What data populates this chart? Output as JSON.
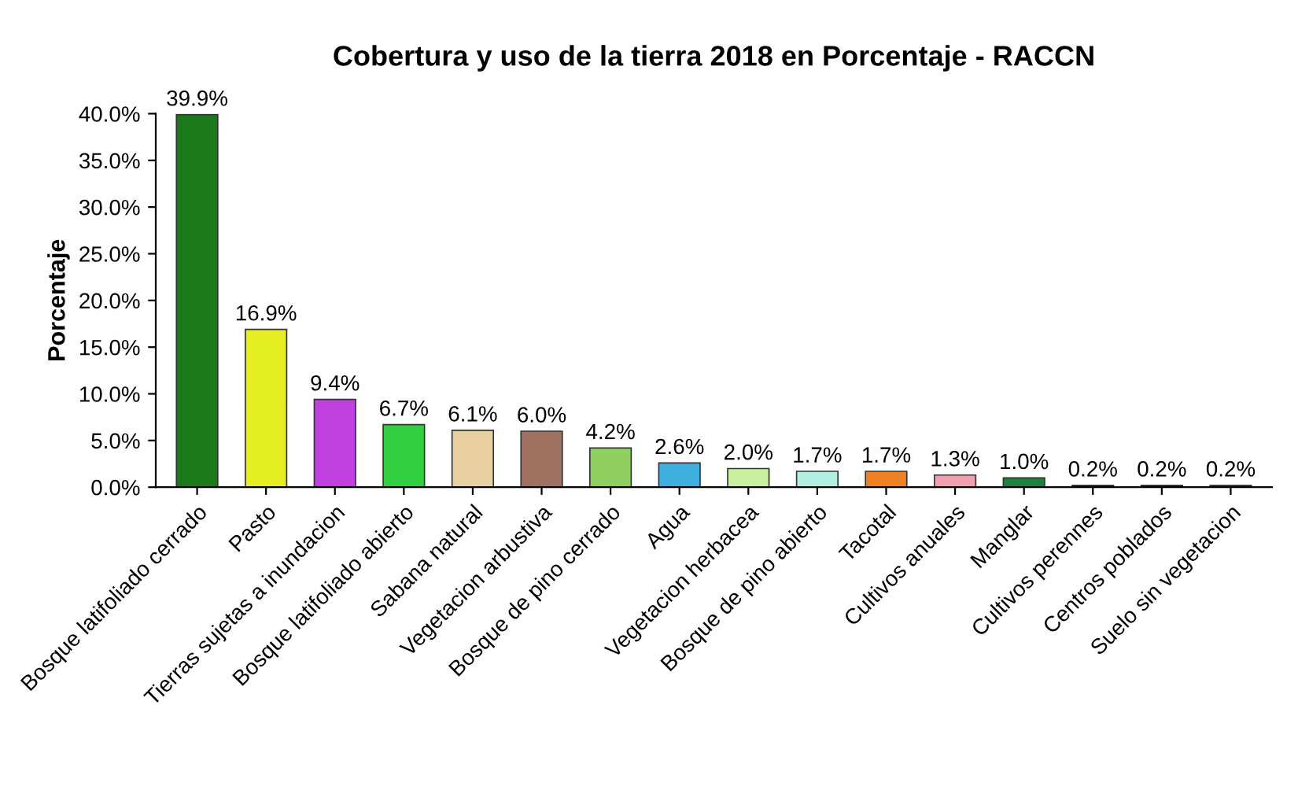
{
  "chart_data": {
    "type": "bar",
    "title": "Cobertura y uso de la tierra 2018 en Porcentaje - RACCN",
    "ylabel": "Porcentaje",
    "categories": [
      "Bosque latifoliado cerrado",
      "Pasto",
      "Tierras sujetas a inundacion",
      "Bosque latifoliado abierto",
      "Sabana natural",
      "Vegetacion arbustiva",
      "Bosque de pino cerrado",
      "Agua",
      "Vegetacion herbacea",
      "Bosque de pino abierto",
      "Tacotal",
      "Cultivos anuales",
      "Manglar",
      "Cultivos perennes",
      "Centros poblados",
      "Suelo sin vegetacion"
    ],
    "values": [
      39.9,
      16.9,
      9.4,
      6.7,
      6.1,
      6.0,
      4.2,
      2.6,
      2.0,
      1.7,
      1.7,
      1.3,
      1.0,
      0.2,
      0.2,
      0.2
    ],
    "value_labels": [
      "39.9%",
      "16.9%",
      "9.4%",
      "6.7%",
      "6.1%",
      "6.0%",
      "4.2%",
      "2.6%",
      "2.0%",
      "1.7%",
      "1.7%",
      "1.3%",
      "1.0%",
      "0.2%",
      "0.2%",
      "0.2%"
    ],
    "colors": [
      "#1a7a1a",
      "#e4ee20",
      "#c040e0",
      "#30d040",
      "#e8d0a0",
      "#a07060",
      "#90d060",
      "#40b0e0",
      "#c8f0a0",
      "#b0f0e0",
      "#f08020",
      "#f0a0b0",
      "#208040",
      "#402010",
      "#202020",
      "#d02090"
    ],
    "ylim": [
      0,
      40
    ],
    "yticks": [
      {
        "value": 0,
        "label": "0.0%"
      },
      {
        "value": 5,
        "label": "5.0%"
      },
      {
        "value": 10,
        "label": "10.0%"
      },
      {
        "value": 15,
        "label": "15.0%"
      },
      {
        "value": 20,
        "label": "20.0%"
      },
      {
        "value": 25,
        "label": "25.0%"
      },
      {
        "value": 30,
        "label": "30.0%"
      },
      {
        "value": 35,
        "label": "35.0%"
      },
      {
        "value": 40,
        "label": "40.0%"
      }
    ],
    "grid": false
  }
}
